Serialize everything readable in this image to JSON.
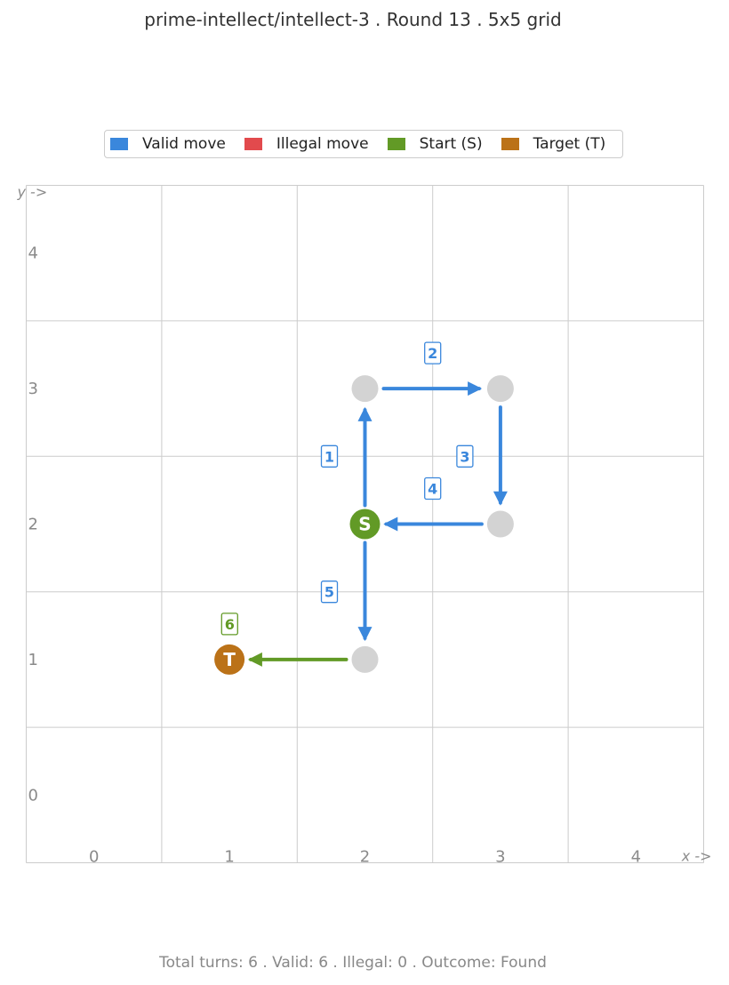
{
  "title": "prime-intellect/intellect-3  .  Round 13  .  5x5 grid",
  "legend": [
    {
      "label": "Valid move",
      "color": "#3a87dc"
    },
    {
      "label": "Illegal move",
      "color": "#e24a4d"
    },
    {
      "label": "Start (S)",
      "color": "#629a26"
    },
    {
      "label": "Target (T)",
      "color": "#bb7218"
    }
  ],
  "grid": {
    "size": 5,
    "x_ticks": [
      "0",
      "1",
      "2",
      "3",
      "4"
    ],
    "y_ticks": [
      "0",
      "1",
      "2",
      "3",
      "4"
    ],
    "x_label": "x ->",
    "y_label": "y ->"
  },
  "colors": {
    "valid": "#3a87dc",
    "illegal": "#e24a4d",
    "start": "#629a26",
    "target": "#bb7218",
    "visited": "#d3d3d3",
    "gridline": "#cccccc"
  },
  "start": {
    "x": 2,
    "y": 2,
    "label": "S"
  },
  "target": {
    "x": 1,
    "y": 1,
    "label": "T"
  },
  "visited": [
    {
      "x": 2,
      "y": 3
    },
    {
      "x": 3,
      "y": 3
    },
    {
      "x": 3,
      "y": 2
    },
    {
      "x": 2,
      "y": 1
    }
  ],
  "moves": [
    {
      "step": "1",
      "from": [
        2,
        2
      ],
      "to": [
        2,
        3
      ],
      "kind": "valid"
    },
    {
      "step": "2",
      "from": [
        2,
        3
      ],
      "to": [
        3,
        3
      ],
      "kind": "valid"
    },
    {
      "step": "3",
      "from": [
        3,
        3
      ],
      "to": [
        3,
        2
      ],
      "kind": "valid"
    },
    {
      "step": "4",
      "from": [
        3,
        2
      ],
      "to": [
        2,
        2
      ],
      "kind": "valid"
    },
    {
      "step": "5",
      "from": [
        2,
        2
      ],
      "to": [
        2,
        1
      ],
      "kind": "valid"
    },
    {
      "step": "6",
      "from": [
        2,
        1
      ],
      "to": [
        1,
        1
      ],
      "kind": "final"
    }
  ],
  "footer": "Total turns: 6   .   Valid: 6   .   Illegal: 0   .   Outcome: Found"
}
